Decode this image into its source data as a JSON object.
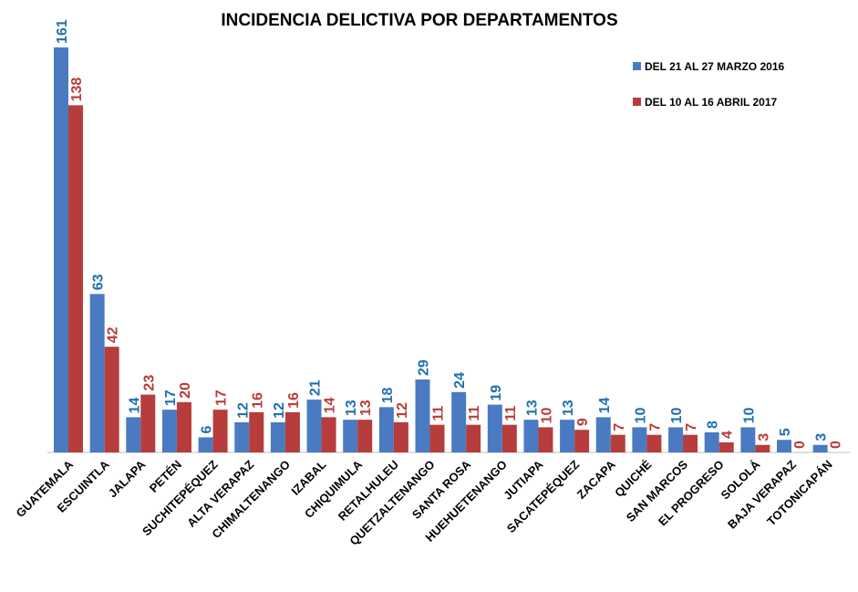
{
  "chart_data": {
    "type": "bar",
    "title": "INCIDENCIA DELICTIVA POR DEPARTAMENTOS",
    "xlabel": "",
    "ylabel": "",
    "ylim": [
      0,
      161
    ],
    "grid": false,
    "legend_position": "top-right",
    "categories": [
      "GUATEMALA",
      "ESCUINTLA",
      "JALAPA",
      "PETÉN",
      "SUCHITEPÉQUEZ",
      "ALTA VERAPAZ",
      "CHIMALTENANGO",
      "IZABAL",
      "CHIQUIMULA",
      "RETALHULEU",
      "QUETZALTENANGO",
      "SANTA ROSA",
      "HUEHUETENANGO",
      "JUTIAPA",
      "SACATEPÉQUEZ",
      "ZACAPA",
      "QUICHÉ",
      "SAN MARCOS",
      "EL PROGRESO",
      "SOLOLÁ",
      "BAJA VERAPAZ",
      "TOTONICAPÁN"
    ],
    "series": [
      {
        "name": "DEL 21 AL 27 MARZO 2016",
        "color": "#4a7bc2",
        "label_color": "#1f6fb0",
        "values": [
          161,
          63,
          14,
          17,
          6,
          12,
          12,
          21,
          13,
          18,
          29,
          24,
          19,
          13,
          13,
          14,
          10,
          10,
          8,
          10,
          5,
          3
        ]
      },
      {
        "name": "DEL 10 AL 16 ABRIL 2017",
        "color": "#b63d3b",
        "label_color": "#b63d3b",
        "values": [
          138,
          42,
          23,
          20,
          17,
          16,
          16,
          14,
          13,
          12,
          11,
          11,
          11,
          10,
          9,
          7,
          7,
          7,
          4,
          3,
          0,
          0
        ]
      }
    ]
  }
}
